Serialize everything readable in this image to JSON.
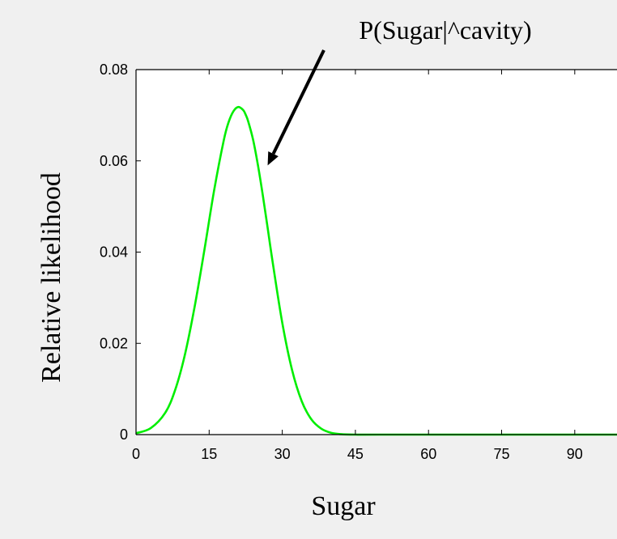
{
  "chart_data": {
    "type": "line",
    "title": "",
    "xlabel": "Sugar",
    "ylabel": "Relative likelihood",
    "xlim": [
      0,
      99
    ],
    "ylim": [
      0,
      0.08
    ],
    "x_ticks": [
      0,
      15,
      30,
      45,
      60,
      75,
      90
    ],
    "y_ticks": [
      0,
      0.02,
      0.04,
      0.06,
      0.08
    ],
    "x_tick_labels": [
      "0",
      "15",
      "30",
      "45",
      "60",
      "75",
      "90"
    ],
    "y_tick_labels": [
      "0",
      "0.02",
      "0.04",
      "0.06",
      "0.08"
    ],
    "grid": false,
    "series": [
      {
        "color": "#00ee00",
        "x": [
          0,
          3,
          6,
          8,
          10,
          12,
          14,
          16,
          18,
          19,
          20,
          21,
          22,
          22.5,
          23,
          24,
          25,
          26,
          27,
          28,
          30,
          32,
          34,
          36,
          38,
          40,
          42,
          45,
          50,
          60,
          75,
          90,
          99
        ],
        "y": [
          0.0003,
          0.0014,
          0.0048,
          0.0097,
          0.0174,
          0.0279,
          0.0403,
          0.0534,
          0.0645,
          0.0685,
          0.0709,
          0.0718,
          0.0711,
          0.0701,
          0.0687,
          0.0647,
          0.0591,
          0.0525,
          0.0453,
          0.038,
          0.0245,
          0.0142,
          0.0073,
          0.0033,
          0.0013,
          0.0004,
          0.0001,
          0.0,
          0.0,
          0.0,
          0.0,
          0.0,
          0.0
        ]
      }
    ],
    "annotations": [
      {
        "text": "P(Sugar|^cavity)",
        "arrow_to": [
          27,
          0.059
        ]
      }
    ]
  }
}
